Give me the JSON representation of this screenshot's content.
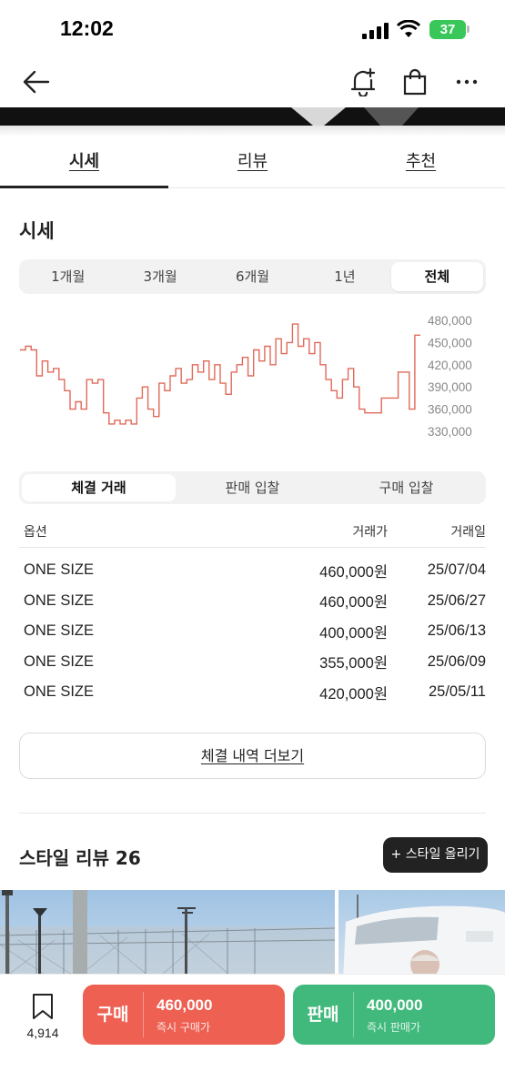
{
  "status": {
    "time": "12:02",
    "battery": "37"
  },
  "nav": {
    "back_icon": "arrow-left-icon",
    "alert_icon": "bell-plus-icon",
    "bag_icon": "shopping-bag-icon",
    "more_icon": "more-horizontal-icon"
  },
  "tabs": [
    {
      "label": "시세",
      "active": true
    },
    {
      "label": "리뷰",
      "active": false
    },
    {
      "label": "추천",
      "active": false
    }
  ],
  "price_section": {
    "title": "시세"
  },
  "periods": [
    "1개월",
    "3개월",
    "6개월",
    "1년",
    "전체"
  ],
  "active_period": "전체",
  "chart_data": {
    "type": "line",
    "ylim": [
      330000,
      480000
    ],
    "yticks": [
      "480,000",
      "450,000",
      "420,000",
      "390,000",
      "360,000",
      "330,000"
    ],
    "color": "#e06a5a",
    "series": [
      {
        "values": [
          440000,
          445000,
          440000,
          405000,
          425000,
          410000,
          415000,
          400000,
          385000,
          360000,
          370000,
          360000,
          400000,
          395000,
          400000,
          355000,
          340000,
          345000,
          340000,
          345000,
          340000,
          375000,
          390000,
          360000,
          350000,
          395000,
          385000,
          405000,
          415000,
          395000,
          400000,
          420000,
          410000,
          425000,
          400000,
          420000,
          395000,
          380000,
          410000,
          420000,
          430000,
          405000,
          440000,
          425000,
          445000,
          420000,
          455000,
          435000,
          450000,
          475000,
          445000,
          455000,
          435000,
          450000,
          420000,
          400000,
          385000,
          375000,
          400000,
          415000,
          390000,
          360000,
          355000,
          355000,
          355000,
          375000,
          375000,
          375000,
          410000,
          410000,
          360000,
          460000,
          460000
        ]
      }
    ]
  },
  "trade_types": [
    "체결 거래",
    "판매 입찰",
    "구매 입찰"
  ],
  "active_trade_type": "체결 거래",
  "table": {
    "headers": [
      "옵션",
      "거래가",
      "거래일"
    ],
    "rows": [
      [
        "ONE SIZE",
        "460,000원",
        "25/07/04"
      ],
      [
        "ONE SIZE",
        "460,000원",
        "25/06/27"
      ],
      [
        "ONE SIZE",
        "400,000원",
        "25/06/13"
      ],
      [
        "ONE SIZE",
        "355,000원",
        "25/06/09"
      ],
      [
        "ONE SIZE",
        "420,000원",
        "25/05/11"
      ]
    ]
  },
  "more_label": "체결 내역 더보기",
  "style_review": {
    "title": "스타일 리뷰 26",
    "upload_label": "+ 스타일 올리기"
  },
  "bottom": {
    "bookmark_icon": "bookmark-icon",
    "bookmark_count": "4,914",
    "buy": {
      "label": "구매",
      "price": "460,000",
      "sub": "즉시 구매가",
      "color": "#ee6052"
    },
    "sell": {
      "label": "판매",
      "price": "400,000",
      "sub": "즉시 판매가",
      "color": "#41b97c"
    }
  }
}
